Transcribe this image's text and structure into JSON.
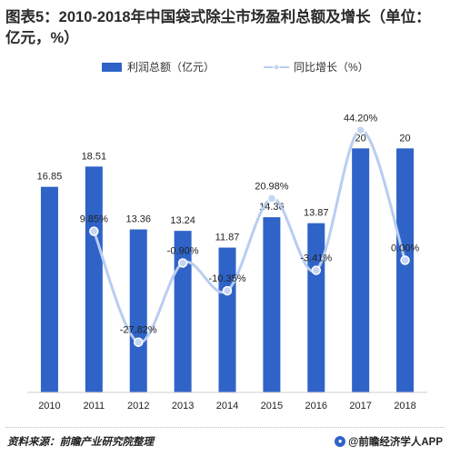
{
  "title": "图表5：2010-2018年中国袋式除尘市场盈利总额及增长（单位：亿元，%）",
  "source": "资料来源：前瞻产业研究院整理",
  "brand": "@前瞻经济学人APP",
  "colors": {
    "bar": "#2f63c7",
    "line": "#b8cdf0",
    "point": "#c5d5f3"
  },
  "chart_data": {
    "type": "bar+line",
    "categories": [
      "2010",
      "2011",
      "2012",
      "2013",
      "2014",
      "2015",
      "2016",
      "2017",
      "2018"
    ],
    "series": [
      {
        "name": "利润总额（亿元）",
        "type": "bar",
        "values": [
          16.85,
          18.51,
          13.36,
          13.24,
          11.87,
          14.36,
          13.87,
          20,
          20
        ],
        "labels": [
          "16.85",
          "18.51",
          "13.36",
          "13.24",
          "11.87",
          "14.36",
          "13.87",
          "20",
          "20"
        ]
      },
      {
        "name": "同比增长（%）",
        "type": "line",
        "values": [
          null,
          9.85,
          -27.82,
          -0.9,
          -10.35,
          20.98,
          -3.41,
          44.2,
          0
        ],
        "labels": [
          "",
          "9.85%",
          "-27.82%",
          "-0.90%",
          "-10.35%",
          "20.98%",
          "-3.41%",
          "44.20%",
          "0.00%"
        ]
      }
    ],
    "bar_ylim": [
      0,
      23.6
    ],
    "line_ylim": [
      -35,
      56
    ],
    "grid": false,
    "legend": "top-center"
  }
}
